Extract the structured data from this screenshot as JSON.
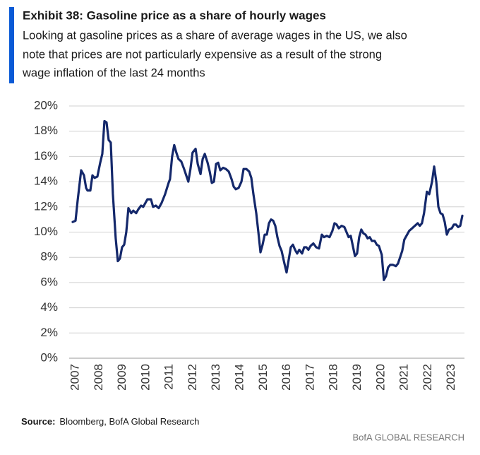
{
  "chart_data": {
    "type": "line",
    "title": "Exhibit 38: Gasoline price as a share of hourly wages",
    "subtitle": [
      "Looking at gasoline prices as a share of average wages in the US, we also",
      "note that prices are not particularly expensive as a result of the strong",
      "wage inflation of the last 24 months"
    ],
    "source": {
      "label": "Source:",
      "text": "Bloomberg, BofA Global Research"
    },
    "footer": "BofA GLOBAL RESEARCH",
    "x": [
      2006.88,
      2007.0,
      2007.09,
      2007.24,
      2007.36,
      2007.45,
      2007.51,
      2007.63,
      2007.72,
      2007.81,
      2007.93,
      2008.05,
      2008.14,
      2008.23,
      2008.32,
      2008.41,
      2008.5,
      2008.59,
      2008.71,
      2008.8,
      2008.89,
      2008.98,
      2009.07,
      2009.16,
      2009.25,
      2009.37,
      2009.46,
      2009.58,
      2009.67,
      2009.79,
      2009.88,
      2009.97,
      2010.06,
      2010.21,
      2010.3,
      2010.42,
      2010.54,
      2010.66,
      2010.81,
      2010.96,
      2011.02,
      2011.11,
      2011.2,
      2011.29,
      2011.38,
      2011.5,
      2011.62,
      2011.71,
      2011.8,
      2011.89,
      2011.98,
      2012.11,
      2012.2,
      2012.32,
      2012.41,
      2012.5,
      2012.62,
      2012.71,
      2012.8,
      2012.89,
      2012.98,
      2013.07,
      2013.16,
      2013.28,
      2013.4,
      2013.52,
      2013.64,
      2013.73,
      2013.82,
      2013.94,
      2014.06,
      2014.15,
      2014.27,
      2014.39,
      2014.48,
      2014.57,
      2014.69,
      2014.78,
      2014.87,
      2014.96,
      2015.05,
      2015.14,
      2015.23,
      2015.32,
      2015.41,
      2015.5,
      2015.59,
      2015.68,
      2015.77,
      2015.89,
      2015.98,
      2016.07,
      2016.16,
      2016.25,
      2016.34,
      2016.43,
      2016.52,
      2016.64,
      2016.73,
      2016.82,
      2016.91,
      2017.0,
      2017.12,
      2017.24,
      2017.36,
      2017.48,
      2017.57,
      2017.69,
      2017.81,
      2017.93,
      2018.02,
      2018.11,
      2018.2,
      2018.32,
      2018.44,
      2018.53,
      2018.62,
      2018.71,
      2018.8,
      2018.89,
      2018.98,
      2019.07,
      2019.16,
      2019.25,
      2019.34,
      2019.43,
      2019.52,
      2019.61,
      2019.73,
      2019.82,
      2019.91,
      2020.03,
      2020.12,
      2020.21,
      2020.3,
      2020.39,
      2020.51,
      2020.63,
      2020.72,
      2020.81,
      2020.9,
      2020.99,
      2021.11,
      2021.2,
      2021.32,
      2021.44,
      2021.56,
      2021.65,
      2021.74,
      2021.83,
      2021.95,
      2022.05,
      2022.17,
      2022.26,
      2022.35,
      2022.44,
      2022.53,
      2022.62,
      2022.71,
      2022.8,
      2022.89,
      2023.01,
      2023.1,
      2023.19,
      2023.28,
      2023.37,
      2023.46
    ],
    "series": [
      {
        "color": "#14286b",
        "values": [
          10.8,
          10.9,
          12.5,
          14.9,
          14.5,
          13.5,
          13.3,
          13.3,
          14.5,
          14.3,
          14.4,
          15.5,
          16.2,
          18.8,
          18.7,
          17.3,
          17.1,
          13.0,
          9.5,
          7.7,
          7.9,
          8.8,
          9.0,
          10.0,
          11.9,
          11.5,
          11.7,
          11.5,
          11.8,
          12.1,
          12.0,
          12.3,
          12.6,
          12.6,
          12.0,
          12.1,
          11.9,
          12.3,
          13.0,
          13.9,
          14.2,
          16.0,
          16.9,
          16.3,
          15.8,
          15.6,
          15.0,
          14.5,
          14.0,
          15.0,
          16.3,
          16.6,
          15.4,
          14.6,
          15.8,
          16.2,
          15.5,
          14.8,
          13.9,
          14.0,
          15.4,
          15.5,
          14.9,
          15.1,
          15.0,
          14.8,
          14.2,
          13.6,
          13.4,
          13.5,
          14.0,
          15.0,
          15.0,
          14.8,
          14.3,
          13.0,
          11.5,
          10.0,
          8.4,
          9.0,
          9.8,
          9.8,
          10.7,
          11.0,
          10.9,
          10.5,
          9.6,
          8.9,
          8.5,
          7.5,
          6.8,
          7.8,
          8.8,
          9.0,
          8.6,
          8.3,
          8.6,
          8.3,
          8.8,
          8.8,
          8.6,
          8.9,
          9.1,
          8.8,
          8.7,
          9.8,
          9.6,
          9.7,
          9.6,
          10.1,
          10.7,
          10.6,
          10.3,
          10.5,
          10.4,
          10.0,
          9.6,
          9.7,
          8.9,
          8.1,
          8.3,
          9.6,
          10.2,
          9.9,
          9.8,
          9.5,
          9.6,
          9.3,
          9.3,
          9.0,
          8.9,
          8.2,
          6.2,
          6.5,
          7.2,
          7.4,
          7.4,
          7.3,
          7.5,
          8.0,
          8.5,
          9.4,
          9.8,
          10.1,
          10.3,
          10.5,
          10.7,
          10.5,
          10.7,
          11.5,
          13.2,
          13.0,
          14.0,
          15.2,
          14.0,
          12.0,
          11.5,
          11.4,
          10.8,
          9.8,
          10.2,
          10.3,
          10.6,
          10.6,
          10.4,
          10.5,
          11.3
        ]
      }
    ],
    "xlim": [
      2006.73,
      2023.55
    ],
    "xticks": [
      2007,
      2008,
      2009,
      2010,
      2011,
      2012,
      2013,
      2014,
      2015,
      2016,
      2017,
      2018,
      2019,
      2020,
      2021,
      2022,
      2023
    ],
    "ylim": [
      0,
      20
    ],
    "yticks": [
      {
        "value": 0,
        "label": "0%"
      },
      {
        "value": 2,
        "label": "2%"
      },
      {
        "value": 4,
        "label": "4%"
      },
      {
        "value": 6,
        "label": "6%"
      },
      {
        "value": 8,
        "label": "8%"
      },
      {
        "value": 10,
        "label": "10%"
      },
      {
        "value": 12,
        "label": "12%"
      },
      {
        "value": 14,
        "label": "14%"
      },
      {
        "value": 16,
        "label": "16%"
      },
      {
        "value": 18,
        "label": "18%"
      },
      {
        "value": 20,
        "label": "20%"
      }
    ],
    "grid": true
  }
}
